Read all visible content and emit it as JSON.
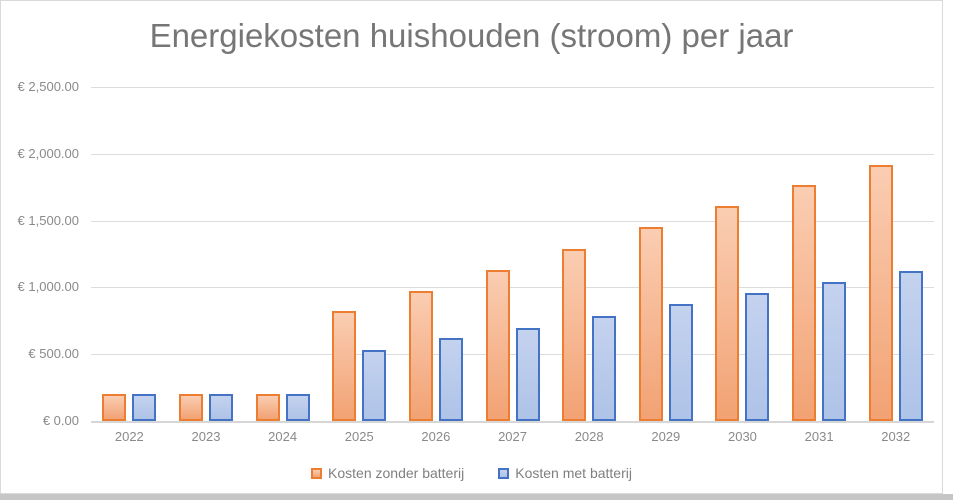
{
  "chart_data": {
    "type": "bar",
    "title": "Energiekosten huishouden (stroom) per jaar",
    "categories": [
      "2022",
      "2023",
      "2024",
      "2025",
      "2026",
      "2027",
      "2028",
      "2029",
      "2030",
      "2031",
      "2032"
    ],
    "series": [
      {
        "name": "Kosten zonder batterij",
        "border_color": "#ED7D31",
        "fill_top": "#FACDB2",
        "fill_bottom": "#F2A273",
        "values": [
          205,
          205,
          205,
          820,
          975,
          1130,
          1285,
          1455,
          1610,
          1770,
          1915
        ]
      },
      {
        "name": "Kosten met batterij",
        "border_color": "#4472C4",
        "fill_top": "#C4D2EE",
        "fill_bottom": "#AEC3E8",
        "values": [
          205,
          205,
          205,
          535,
          625,
          700,
          785,
          875,
          960,
          1040,
          1125
        ]
      }
    ],
    "ylim": [
      0,
      2500
    ],
    "y_ticks": [
      {
        "value": 2500,
        "label": "€ 2,500.00"
      },
      {
        "value": 2000,
        "label": "€ 2,000.00"
      },
      {
        "value": 1500,
        "label": "€ 1,500.00"
      },
      {
        "value": 1000,
        "label": "€ 1,000.00"
      },
      {
        "value": 500,
        "label": "€ 500.00"
      },
      {
        "value": 0,
        "label": "€ 0.00"
      }
    ],
    "grid": true,
    "legend_position": "bottom"
  },
  "colors": {
    "title_text": "#767676",
    "axis_text": "#8A8A8A",
    "gridline": "#DCDCDC",
    "frame_border": "#D9D9D9"
  }
}
